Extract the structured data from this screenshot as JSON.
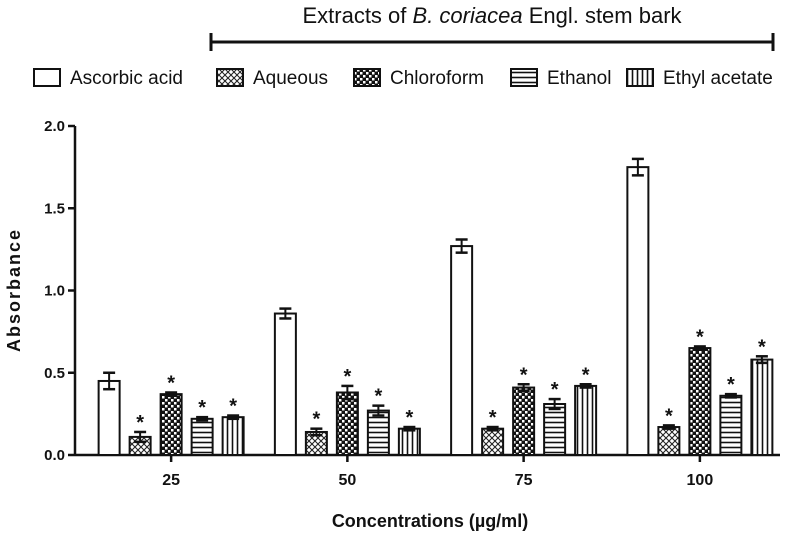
{
  "header": {
    "prefix": "Extracts of ",
    "species": "B. coriacea",
    "suffix": " Engl. stem bark"
  },
  "chart_data": {
    "type": "bar",
    "xlabel": "Concentrations (µg/ml)",
    "ylabel": "Absorbance",
    "ylim": [
      0,
      2.0
    ],
    "yticks": [
      "0.0",
      "0.5",
      "1.0",
      "1.5",
      "2.0"
    ],
    "grid": false,
    "legend_position": "top",
    "categories": [
      "25",
      "50",
      "75",
      "100"
    ],
    "series": [
      {
        "name": "Ascorbic acid",
        "pattern": "blank",
        "values": [
          0.45,
          0.86,
          1.27,
          1.75
        ],
        "errors": [
          0.05,
          0.03,
          0.04,
          0.05
        ],
        "significant": [
          false,
          false,
          false,
          false
        ]
      },
      {
        "name": "Aqueous",
        "pattern": "crosshatch-light",
        "values": [
          0.11,
          0.14,
          0.16,
          0.17
        ],
        "errors": [
          0.03,
          0.02,
          0.01,
          0.01
        ],
        "significant": [
          true,
          true,
          true,
          true
        ]
      },
      {
        "name": "Chloroform",
        "pattern": "checker-dark",
        "values": [
          0.37,
          0.38,
          0.41,
          0.65
        ],
        "errors": [
          0.01,
          0.04,
          0.02,
          0.01
        ],
        "significant": [
          true,
          true,
          true,
          true
        ]
      },
      {
        "name": "Ethanol",
        "pattern": "horizontal-lines",
        "values": [
          0.22,
          0.27,
          0.31,
          0.36
        ],
        "errors": [
          0.01,
          0.03,
          0.03,
          0.01
        ],
        "significant": [
          true,
          true,
          true,
          true
        ]
      },
      {
        "name": "Ethyl acetate",
        "pattern": "vertical-lines",
        "values": [
          0.23,
          0.16,
          0.42,
          0.58
        ],
        "errors": [
          0.01,
          0.01,
          0.01,
          0.02
        ],
        "significant": [
          true,
          true,
          true,
          true
        ]
      }
    ],
    "significance_marker": "*"
  }
}
